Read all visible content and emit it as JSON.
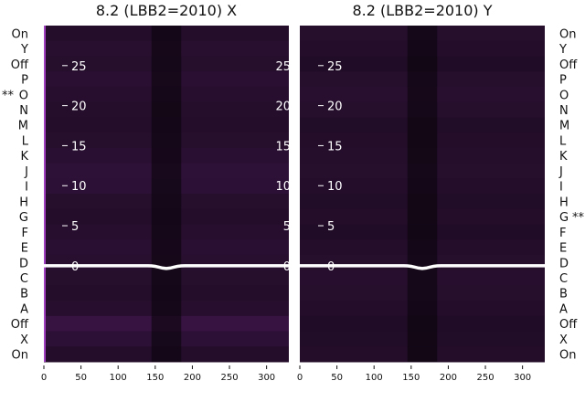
{
  "chart_data": [
    {
      "type": "heatmap",
      "title": "8.2 (LBB2=2010) X",
      "x_ticks": [
        0,
        50,
        100,
        150,
        200,
        250,
        300
      ],
      "xlim": [
        0,
        330
      ],
      "y_overlay_ticks": [
        0,
        5,
        10,
        15,
        20,
        25
      ],
      "y_overlay_range": [
        -12,
        30
      ],
      "row_labels": [
        "On",
        "Y",
        "Off",
        "P",
        "O",
        "N",
        "M",
        "L",
        "K",
        "J",
        "I",
        "H",
        "G",
        "F",
        "E",
        "D",
        "C",
        "B",
        "A",
        "Off",
        "X",
        "On"
      ],
      "row_label_side": "left",
      "row_intensity": [
        0.1,
        0.14,
        0.12,
        0.16,
        0.13,
        0.11,
        0.1,
        0.12,
        0.15,
        0.2,
        0.18,
        0.12,
        0.1,
        0.13,
        0.15,
        0.14,
        0.12,
        0.1,
        0.13,
        0.28,
        0.18,
        0.1
      ],
      "marker": {
        "text": "**",
        "row_index": 4
      },
      "line": {
        "series": "white trace",
        "y": 0
      }
    },
    {
      "type": "heatmap",
      "title": "8.2 (LBB2=2010) Y",
      "x_ticks": [
        0,
        50,
        100,
        150,
        200,
        250,
        300
      ],
      "xlim": [
        0,
        330
      ],
      "y_overlay_ticks": [
        0,
        5,
        10,
        15,
        20,
        25
      ],
      "y_overlay_range": [
        -12,
        30
      ],
      "row_labels": [
        "On",
        "Y",
        "Off",
        "P",
        "O",
        "N",
        "M",
        "L",
        "K",
        "J",
        "I",
        "H",
        "G",
        "F",
        "E",
        "D",
        "C",
        "B",
        "A",
        "Off",
        "X",
        "On"
      ],
      "row_label_side": "right",
      "row_intensity": [
        0.12,
        0.1,
        0.06,
        0.12,
        0.14,
        0.12,
        0.08,
        0.09,
        0.11,
        0.12,
        0.1,
        0.08,
        0.09,
        0.07,
        0.1,
        0.12,
        0.13,
        0.12,
        0.1,
        0.06,
        0.08,
        0.09
      ],
      "marker": {
        "text": "**",
        "row_index": 12
      },
      "line": {
        "series": "white trace",
        "y": 0
      }
    }
  ],
  "colors": {
    "background": "#ffffff",
    "heat_base": "#1a0a1e",
    "heat_bright": "#3b1548",
    "dark_band": "#080308",
    "trace": "#ffffff",
    "edge": "#a040c0"
  }
}
